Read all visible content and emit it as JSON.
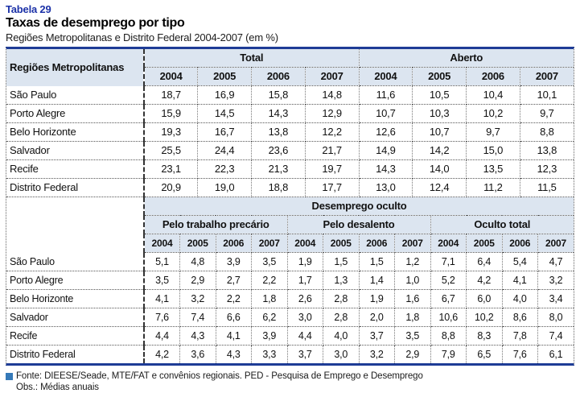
{
  "header": {
    "table_number": "Tabela 29",
    "title": "Taxas de desemprego por tipo",
    "subtitle": "Regiões Metropolitanas e Distrito Federal 2004-2007 (em %)"
  },
  "colors": {
    "accent_blue": "#1c32a8",
    "rule_navy": "#1e3c96",
    "header_bg": "#dce5f0",
    "legend_square": "#3579b8"
  },
  "table_top": {
    "row_header": "Regiões Metropolitanas",
    "groups": [
      {
        "label": "Total",
        "years": [
          "2004",
          "2005",
          "2006",
          "2007"
        ]
      },
      {
        "label": "Aberto",
        "years": [
          "2004",
          "2005",
          "2006",
          "2007"
        ]
      }
    ],
    "rows": [
      {
        "region": "São Paulo",
        "values": [
          "18,7",
          "16,9",
          "15,8",
          "14,8",
          "11,6",
          "10,5",
          "10,4",
          "10,1"
        ]
      },
      {
        "region": "Porto Alegre",
        "values": [
          "15,9",
          "14,5",
          "14,3",
          "12,9",
          "10,7",
          "10,3",
          "10,2",
          "9,7"
        ]
      },
      {
        "region": "Belo Horizonte",
        "values": [
          "19,3",
          "16,7",
          "13,8",
          "12,2",
          "12,6",
          "10,7",
          "9,7",
          "8,8"
        ]
      },
      {
        "region": "Salvador",
        "values": [
          "25,5",
          "24,4",
          "23,6",
          "21,7",
          "14,9",
          "14,2",
          "15,0",
          "13,8"
        ]
      },
      {
        "region": "Recife",
        "values": [
          "23,1",
          "22,3",
          "21,3",
          "19,7",
          "14,3",
          "14,0",
          "13,5",
          "12,3"
        ]
      },
      {
        "region": "Distrito Federal",
        "values": [
          "20,9",
          "19,0",
          "18,8",
          "17,7",
          "13,0",
          "12,4",
          "11,2",
          "11,5"
        ]
      }
    ]
  },
  "table_bottom": {
    "super_header": "Desemprego oculto",
    "groups": [
      {
        "label": "Pelo trabalho precário",
        "years": [
          "2004",
          "2005",
          "2006",
          "2007"
        ]
      },
      {
        "label": "Pelo desalento",
        "years": [
          "2004",
          "2005",
          "2006",
          "2007"
        ]
      },
      {
        "label": "Oculto total",
        "years": [
          "2004",
          "2005",
          "2006",
          "2007"
        ]
      }
    ],
    "rows": [
      {
        "region": "São Paulo",
        "values": [
          "5,1",
          "4,8",
          "3,9",
          "3,5",
          "1,9",
          "1,5",
          "1,5",
          "1,2",
          "7,1",
          "6,4",
          "5,4",
          "4,7"
        ]
      },
      {
        "region": "Porto Alegre",
        "values": [
          "3,5",
          "2,9",
          "2,7",
          "2,2",
          "1,7",
          "1,3",
          "1,4",
          "1,0",
          "5,2",
          "4,2",
          "4,1",
          "3,2"
        ]
      },
      {
        "region": "Belo Horizonte",
        "values": [
          "4,1",
          "3,2",
          "2,2",
          "1,8",
          "2,6",
          "2,8",
          "1,9",
          "1,6",
          "6,7",
          "6,0",
          "4,0",
          "3,4"
        ]
      },
      {
        "region": "Salvador",
        "values": [
          "7,6",
          "7,4",
          "6,6",
          "6,2",
          "3,0",
          "2,8",
          "2,0",
          "1,8",
          "10,6",
          "10,2",
          "8,6",
          "8,0"
        ]
      },
      {
        "region": "Recife",
        "values": [
          "4,4",
          "4,3",
          "4,1",
          "3,9",
          "4,4",
          "4,0",
          "3,7",
          "3,5",
          "8,8",
          "8,3",
          "7,8",
          "7,4"
        ]
      },
      {
        "region": "Distrito Federal",
        "values": [
          "4,2",
          "3,6",
          "4,3",
          "3,3",
          "3,7",
          "3,0",
          "3,2",
          "2,9",
          "7,9",
          "6,5",
          "7,6",
          "6,1"
        ]
      }
    ]
  },
  "footnotes": {
    "fonte": "Fonte: DIEESE/Seade, MTE/FAT e convênios regionais. PED - Pesquisa de Emprego e Desemprego",
    "obs": "Obs.: Médias anuais"
  }
}
